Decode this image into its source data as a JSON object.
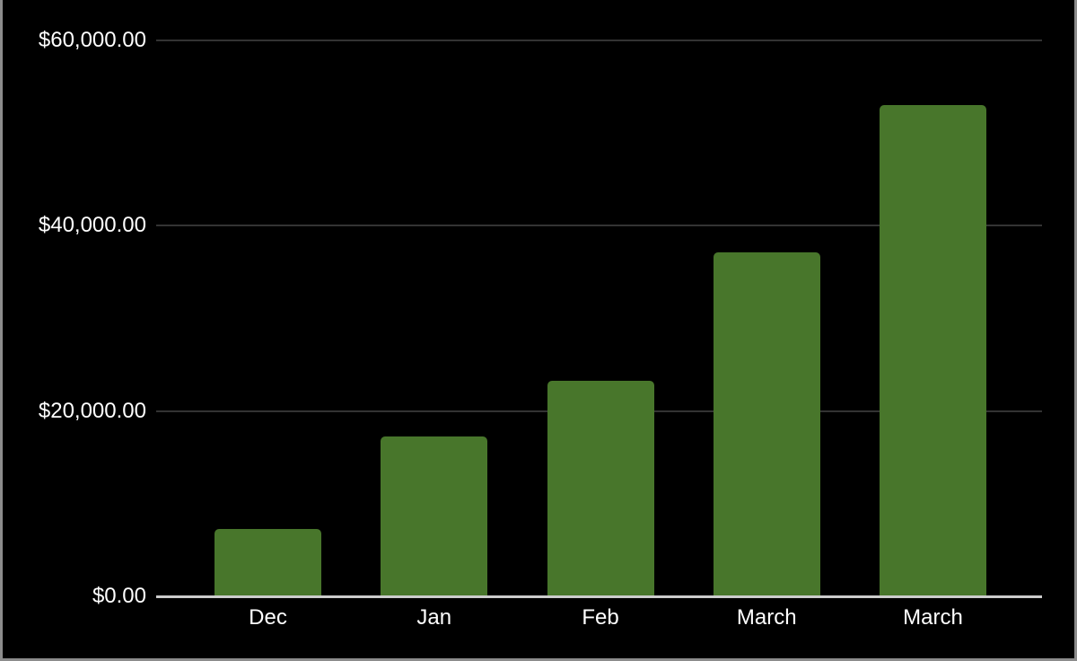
{
  "chart_data": {
    "type": "bar",
    "title": "",
    "categories": [
      "Dec",
      "Jan",
      "Feb",
      "March",
      "March"
    ],
    "values": [
      7300,
      17250,
      23300,
      37100,
      53000
    ],
    "xlabel": "",
    "ylabel": "",
    "ylim": [
      0,
      60000
    ],
    "y_ticks": [
      {
        "label": "$60,000.00",
        "value": 60000
      },
      {
        "label": "$40,000.00",
        "value": 40000
      },
      {
        "label": "$20,000.00",
        "value": 20000
      },
      {
        "label": "$0.00",
        "value": 0
      }
    ],
    "grid": true,
    "legend": "none",
    "colors": {
      "bar": "#48762b",
      "background": "#000000",
      "text": "#ffffff",
      "gridline": "#333333",
      "axis_line": "#cccccc",
      "frame_border": "#8c8c8c"
    }
  }
}
